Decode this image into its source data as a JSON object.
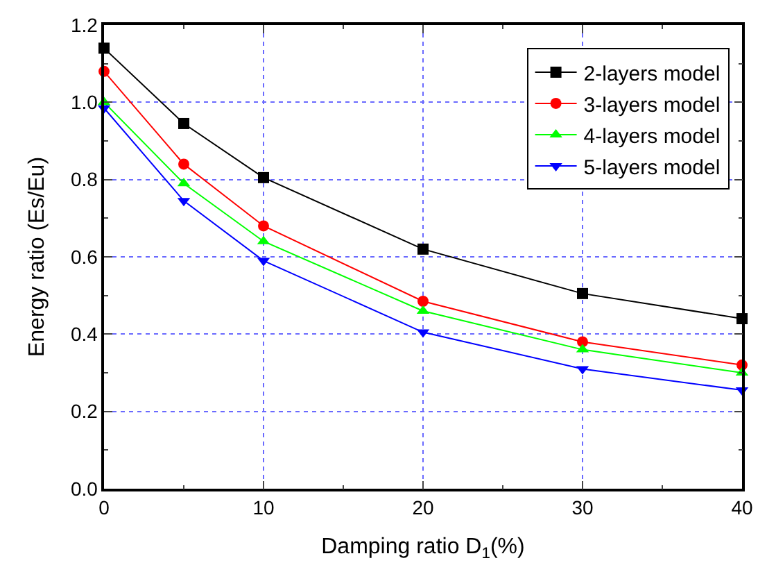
{
  "chart_data": {
    "type": "line",
    "xlabel": "Damping ratio D$_{1}$(%)",
    "ylabel": "Energy ratio (Es/Eu)",
    "x": [
      0,
      5,
      10,
      20,
      30,
      40
    ],
    "series": [
      {
        "name": "2-layers model",
        "color": "#000000",
        "marker": "square",
        "values": [
          1.14,
          0.945,
          0.805,
          0.62,
          0.505,
          0.44
        ]
      },
      {
        "name": "3-layers model",
        "color": "#ff0000",
        "marker": "circle",
        "values": [
          1.08,
          0.84,
          0.68,
          0.485,
          0.38,
          0.32
        ]
      },
      {
        "name": "4-layers model",
        "color": "#00ff00",
        "marker": "triangle",
        "values": [
          1.0,
          0.79,
          0.64,
          0.46,
          0.36,
          0.3
        ]
      },
      {
        "name": "5-layers model",
        "color": "#0000ff",
        "marker": "triangle-down",
        "values": [
          0.985,
          0.745,
          0.59,
          0.405,
          0.31,
          0.255
        ]
      }
    ],
    "xlim": [
      0,
      40
    ],
    "xticks": [
      0,
      10,
      20,
      30,
      40
    ],
    "ylim": [
      0,
      1.2
    ],
    "yticks": [
      {
        "value": 0,
        "label": "0.0"
      },
      0.2,
      0.4,
      0.6,
      0.8,
      {
        "value": 1,
        "label": "1.0"
      },
      1.2
    ],
    "grid": true,
    "legend": "top right",
    "line_style": "solid"
  }
}
